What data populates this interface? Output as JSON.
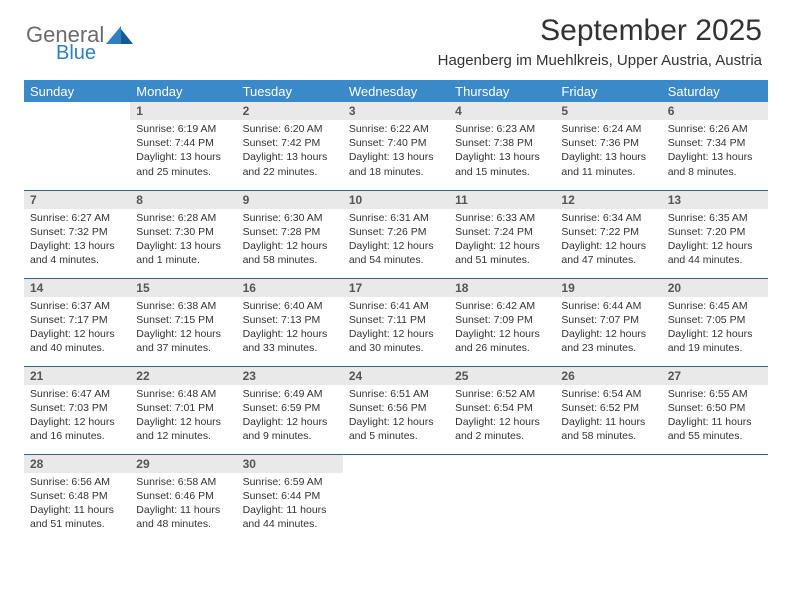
{
  "logo": {
    "line1": "General",
    "line2": "Blue"
  },
  "title": "September 2025",
  "subtitle": "Hagenberg im Muehlkreis, Upper Austria, Austria",
  "colors": {
    "header_bg": "#3a89c9",
    "header_text": "#ffffff",
    "divider": "#2f5f8f",
    "daynum_bg": "#e9e9e9",
    "daynum_text": "#555555",
    "logo_gray": "#6b6b6b",
    "logo_blue": "#2f7fc1",
    "body_text": "#333333"
  },
  "day_headers": [
    "Sunday",
    "Monday",
    "Tuesday",
    "Wednesday",
    "Thursday",
    "Friday",
    "Saturday"
  ],
  "weeks": [
    [
      {
        "empty": true
      },
      {
        "num": "1",
        "sunrise": "6:19 AM",
        "sunset": "7:44 PM",
        "daylight": "13 hours and 25 minutes."
      },
      {
        "num": "2",
        "sunrise": "6:20 AM",
        "sunset": "7:42 PM",
        "daylight": "13 hours and 22 minutes."
      },
      {
        "num": "3",
        "sunrise": "6:22 AM",
        "sunset": "7:40 PM",
        "daylight": "13 hours and 18 minutes."
      },
      {
        "num": "4",
        "sunrise": "6:23 AM",
        "sunset": "7:38 PM",
        "daylight": "13 hours and 15 minutes."
      },
      {
        "num": "5",
        "sunrise": "6:24 AM",
        "sunset": "7:36 PM",
        "daylight": "13 hours and 11 minutes."
      },
      {
        "num": "6",
        "sunrise": "6:26 AM",
        "sunset": "7:34 PM",
        "daylight": "13 hours and 8 minutes."
      }
    ],
    [
      {
        "num": "7",
        "sunrise": "6:27 AM",
        "sunset": "7:32 PM",
        "daylight": "13 hours and 4 minutes."
      },
      {
        "num": "8",
        "sunrise": "6:28 AM",
        "sunset": "7:30 PM",
        "daylight": "13 hours and 1 minute."
      },
      {
        "num": "9",
        "sunrise": "6:30 AM",
        "sunset": "7:28 PM",
        "daylight": "12 hours and 58 minutes."
      },
      {
        "num": "10",
        "sunrise": "6:31 AM",
        "sunset": "7:26 PM",
        "daylight": "12 hours and 54 minutes."
      },
      {
        "num": "11",
        "sunrise": "6:33 AM",
        "sunset": "7:24 PM",
        "daylight": "12 hours and 51 minutes."
      },
      {
        "num": "12",
        "sunrise": "6:34 AM",
        "sunset": "7:22 PM",
        "daylight": "12 hours and 47 minutes."
      },
      {
        "num": "13",
        "sunrise": "6:35 AM",
        "sunset": "7:20 PM",
        "daylight": "12 hours and 44 minutes."
      }
    ],
    [
      {
        "num": "14",
        "sunrise": "6:37 AM",
        "sunset": "7:17 PM",
        "daylight": "12 hours and 40 minutes."
      },
      {
        "num": "15",
        "sunrise": "6:38 AM",
        "sunset": "7:15 PM",
        "daylight": "12 hours and 37 minutes."
      },
      {
        "num": "16",
        "sunrise": "6:40 AM",
        "sunset": "7:13 PM",
        "daylight": "12 hours and 33 minutes."
      },
      {
        "num": "17",
        "sunrise": "6:41 AM",
        "sunset": "7:11 PM",
        "daylight": "12 hours and 30 minutes."
      },
      {
        "num": "18",
        "sunrise": "6:42 AM",
        "sunset": "7:09 PM",
        "daylight": "12 hours and 26 minutes."
      },
      {
        "num": "19",
        "sunrise": "6:44 AM",
        "sunset": "7:07 PM",
        "daylight": "12 hours and 23 minutes."
      },
      {
        "num": "20",
        "sunrise": "6:45 AM",
        "sunset": "7:05 PM",
        "daylight": "12 hours and 19 minutes."
      }
    ],
    [
      {
        "num": "21",
        "sunrise": "6:47 AM",
        "sunset": "7:03 PM",
        "daylight": "12 hours and 16 minutes."
      },
      {
        "num": "22",
        "sunrise": "6:48 AM",
        "sunset": "7:01 PM",
        "daylight": "12 hours and 12 minutes."
      },
      {
        "num": "23",
        "sunrise": "6:49 AM",
        "sunset": "6:59 PM",
        "daylight": "12 hours and 9 minutes."
      },
      {
        "num": "24",
        "sunrise": "6:51 AM",
        "sunset": "6:56 PM",
        "daylight": "12 hours and 5 minutes."
      },
      {
        "num": "25",
        "sunrise": "6:52 AM",
        "sunset": "6:54 PM",
        "daylight": "12 hours and 2 minutes."
      },
      {
        "num": "26",
        "sunrise": "6:54 AM",
        "sunset": "6:52 PM",
        "daylight": "11 hours and 58 minutes."
      },
      {
        "num": "27",
        "sunrise": "6:55 AM",
        "sunset": "6:50 PM",
        "daylight": "11 hours and 55 minutes."
      }
    ],
    [
      {
        "num": "28",
        "sunrise": "6:56 AM",
        "sunset": "6:48 PM",
        "daylight": "11 hours and 51 minutes."
      },
      {
        "num": "29",
        "sunrise": "6:58 AM",
        "sunset": "6:46 PM",
        "daylight": "11 hours and 48 minutes."
      },
      {
        "num": "30",
        "sunrise": "6:59 AM",
        "sunset": "6:44 PM",
        "daylight": "11 hours and 44 minutes."
      },
      {
        "empty": true
      },
      {
        "empty": true
      },
      {
        "empty": true
      },
      {
        "empty": true
      }
    ]
  ],
  "labels": {
    "sunrise_prefix": "Sunrise: ",
    "sunset_prefix": "Sunset: ",
    "daylight_prefix": "Daylight: "
  }
}
